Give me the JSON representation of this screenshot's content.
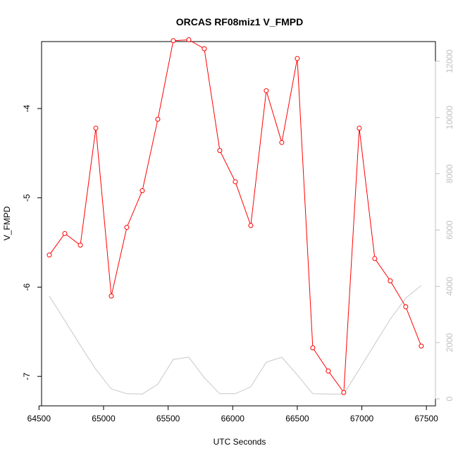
{
  "chart_data": {
    "type": "line",
    "title": "ORCAS RF08miz1 V_FMPD",
    "xlabel": "UTC Seconds",
    "ylabel": "V_FMPD",
    "xlim": [
      64520,
      67570
    ],
    "ylim": [
      -7.33,
      -3.25
    ],
    "y2lim": [
      -250,
      12700
    ],
    "x_ticks": [
      "64500",
      "65000",
      "65500",
      "66000",
      "66500",
      "67000",
      "67500"
    ],
    "y_ticks": [
      "-4",
      "-5",
      "-6",
      "-7"
    ],
    "y2_ticks": [
      "0",
      "2000",
      "4000",
      "6000",
      "8000",
      "10000",
      "12000"
    ],
    "grid": false,
    "series": [
      {
        "axis": "left",
        "color": "#ff0000",
        "markers": "open-circle",
        "x": [
          64580,
          64700,
          64820,
          64940,
          65060,
          65180,
          65300,
          65420,
          65540,
          65660,
          65780,
          65900,
          66020,
          66140,
          66260,
          66380,
          66500,
          66620,
          66740,
          66860,
          66980,
          67100,
          67220,
          67340,
          67460
        ],
        "y": [
          -5.64,
          -5.4,
          -5.53,
          -4.22,
          -6.1,
          -5.33,
          -4.92,
          -4.12,
          -3.24,
          -3.23,
          -3.33,
          -4.47,
          -4.82,
          -5.31,
          -3.8,
          -4.38,
          -3.44,
          -6.68,
          -6.94,
          -7.18,
          -4.22,
          -5.68,
          -5.93,
          -6.22,
          -6.66
        ]
      },
      {
        "axis": "right",
        "color": "#c8c8c8",
        "markers": "none",
        "x": [
          64580,
          64700,
          64820,
          64940,
          65060,
          65180,
          65300,
          65420,
          65540,
          65660,
          65780,
          65900,
          66020,
          66140,
          66260,
          66380,
          66500,
          66620,
          66740,
          66860,
          66980,
          67100,
          67220,
          67340,
          67460
        ],
        "y": [
          3650,
          2780,
          1900,
          1050,
          350,
          180,
          170,
          520,
          1400,
          1480,
          750,
          180,
          180,
          430,
          1300,
          1480,
          850,
          180,
          170,
          170,
          1050,
          1950,
          2830,
          3580,
          4030
        ]
      }
    ]
  }
}
